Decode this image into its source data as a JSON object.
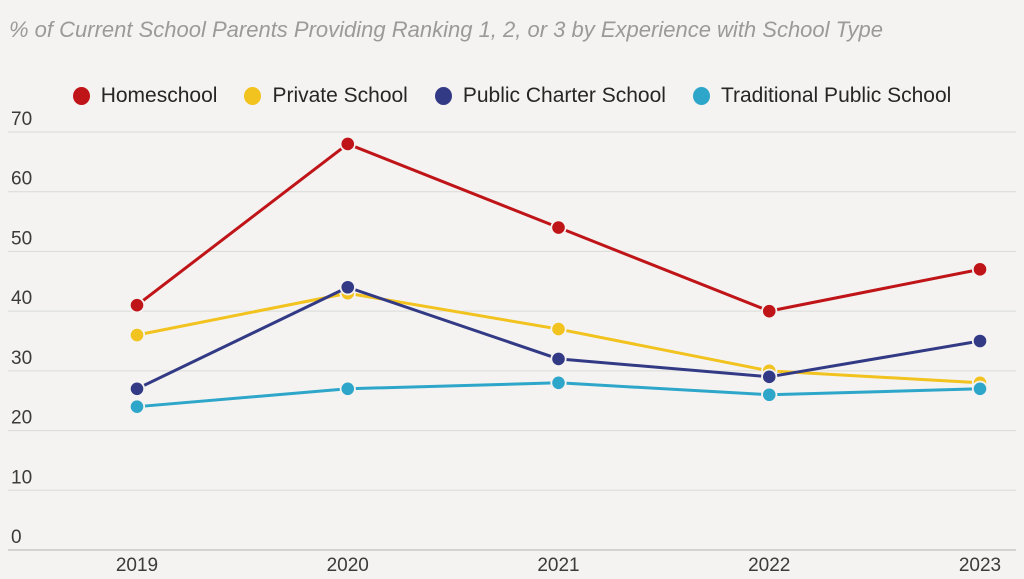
{
  "colors": {
    "background": "#f4f3f1",
    "gridline": "#dadad8",
    "axis_line": "#c8c7c5",
    "title_text": "#9b9a98",
    "tick_text": "#3b3b39",
    "legend_text": "#262624"
  },
  "chart_data": {
    "type": "line",
    "title": "% of Current School Parents Providing Ranking 1, 2, or 3 by Experience with School Type",
    "x": [
      "2019",
      "2020",
      "2021",
      "2022",
      "2023"
    ],
    "series": [
      {
        "name": "Homeschool",
        "color": "#bf1418",
        "values": [
          41,
          68,
          54,
          40,
          47
        ]
      },
      {
        "name": "Private School",
        "color": "#f2c21e",
        "values": [
          36,
          43,
          37,
          30,
          28
        ]
      },
      {
        "name": "Public Charter School",
        "color": "#333a85",
        "values": [
          27,
          44,
          32,
          29,
          35
        ]
      },
      {
        "name": "Traditional Public School",
        "color": "#2ea6c9",
        "values": [
          24,
          27,
          28,
          26,
          27
        ]
      }
    ],
    "xlabel": "",
    "ylabel": "",
    "ylim": [
      0,
      70
    ],
    "yticks": [
      0,
      10,
      20,
      30,
      40,
      50,
      60,
      70
    ],
    "grid": true,
    "legend_position": "top"
  }
}
